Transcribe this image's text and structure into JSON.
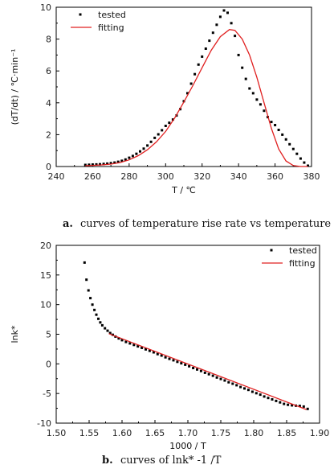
{
  "chart_data": [
    {
      "type": "scatter",
      "xlabel": "T / ℃",
      "ylabel": "(dT/dt) / ℃·min⁻¹",
      "xlim": [
        240,
        380
      ],
      "ylim": [
        0,
        10
      ],
      "xticks": [
        240,
        260,
        280,
        300,
        320,
        340,
        360,
        380
      ],
      "yticks": [
        0,
        2,
        4,
        6,
        8,
        10
      ],
      "legend_position": "top-left",
      "caption_letter": "a.",
      "caption_text": "curves of temperature rise rate vs temperature",
      "series": [
        {
          "name": "tested",
          "style": "points",
          "color": "#000000",
          "x": [
            256,
            258,
            260,
            262,
            264,
            266,
            268,
            270,
            272,
            274,
            276,
            278,
            280,
            282,
            284,
            286,
            288,
            290,
            292,
            294,
            296,
            298,
            300,
            302,
            304,
            306,
            308,
            310,
            312,
            314,
            316,
            318,
            320,
            322,
            324,
            326,
            328,
            330,
            332,
            334,
            336,
            338,
            340,
            342,
            344,
            346,
            348,
            350,
            352,
            354,
            356,
            358,
            360,
            362,
            364,
            366,
            368,
            370,
            372,
            374,
            376,
            378
          ],
          "y": [
            0.1,
            0.11,
            0.12,
            0.13,
            0.14,
            0.16,
            0.18,
            0.21,
            0.25,
            0.3,
            0.36,
            0.44,
            0.55,
            0.66,
            0.8,
            0.95,
            1.12,
            1.32,
            1.55,
            1.8,
            2.02,
            2.28,
            2.55,
            2.75,
            2.95,
            3.2,
            3.6,
            4.1,
            4.6,
            5.2,
            5.8,
            6.4,
            6.9,
            7.4,
            7.9,
            8.4,
            8.9,
            9.4,
            9.8,
            9.65,
            9.0,
            8.2,
            7.0,
            6.2,
            5.5,
            4.9,
            4.6,
            4.2,
            3.9,
            3.5,
            3.1,
            2.8,
            2.6,
            2.3,
            2.0,
            1.7,
            1.4,
            1.1,
            0.8,
            0.5,
            0.25,
            0.05
          ]
        },
        {
          "name": "fitting",
          "style": "line",
          "color": "#e02020",
          "x": [
            256,
            260,
            265,
            270,
            275,
            280,
            285,
            290,
            295,
            300,
            305,
            310,
            315,
            320,
            325,
            330,
            335,
            338,
            342,
            346,
            350,
            354,
            358,
            362,
            366,
            370,
            374,
            378
          ],
          "y": [
            0.05,
            0.07,
            0.1,
            0.15,
            0.25,
            0.42,
            0.68,
            1.05,
            1.55,
            2.2,
            3.05,
            4.05,
            5.1,
            6.2,
            7.3,
            8.15,
            8.6,
            8.55,
            8.0,
            7.0,
            5.6,
            4.0,
            2.4,
            1.1,
            0.35,
            0.06,
            0.0,
            0.0
          ]
        }
      ]
    },
    {
      "type": "scatter",
      "xlabel": "1000 / T",
      "ylabel": "lnk*",
      "xlim": [
        1.5,
        1.9
      ],
      "ylim": [
        -10,
        20
      ],
      "xticks": [
        1.5,
        1.55,
        1.6,
        1.65,
        1.7,
        1.75,
        1.8,
        1.85,
        1.9
      ],
      "xtick_labels": [
        "1.50",
        "1.55",
        "1.60",
        "1.65",
        "1.70",
        "1.75",
        "1.80",
        "1.85",
        "1.90"
      ],
      "yticks": [
        -10,
        -5,
        0,
        5,
        10,
        15,
        20
      ],
      "legend_position": "top-right",
      "caption_letter": "b.",
      "caption_text": "curves of lnk* -1 /T",
      "series": [
        {
          "name": "tested",
          "style": "points",
          "color": "#000000",
          "x": [
            1.543,
            1.546,
            1.549,
            1.552,
            1.555,
            1.558,
            1.561,
            1.564,
            1.567,
            1.57,
            1.574,
            1.578,
            1.582,
            1.586,
            1.59,
            1.595,
            1.6,
            1.606,
            1.612,
            1.618,
            1.624,
            1.63,
            1.636,
            1.642,
            1.648,
            1.654,
            1.66,
            1.666,
            1.672,
            1.678,
            1.684,
            1.69,
            1.696,
            1.702,
            1.708,
            1.714,
            1.72,
            1.726,
            1.732,
            1.738,
            1.744,
            1.75,
            1.756,
            1.762,
            1.768,
            1.774,
            1.78,
            1.786,
            1.792,
            1.798,
            1.804,
            1.81,
            1.816,
            1.822,
            1.828,
            1.834,
            1.84,
            1.846,
            1.852,
            1.858,
            1.864,
            1.87,
            1.876,
            1.882
          ],
          "y": [
            17.1,
            14.2,
            12.4,
            11.1,
            10.0,
            9.1,
            8.3,
            7.6,
            7.0,
            6.5,
            6.0,
            5.6,
            5.2,
            4.9,
            4.6,
            4.3,
            4.0,
            3.7,
            3.45,
            3.2,
            2.95,
            2.7,
            2.45,
            2.2,
            1.95,
            1.65,
            1.4,
            1.1,
            0.85,
            0.6,
            0.35,
            0.1,
            -0.15,
            -0.4,
            -0.7,
            -0.95,
            -1.2,
            -1.5,
            -1.75,
            -2.0,
            -2.3,
            -2.55,
            -2.8,
            -3.1,
            -3.35,
            -3.6,
            -3.9,
            -4.15,
            -4.4,
            -4.7,
            -4.95,
            -5.2,
            -5.5,
            -5.75,
            -6.0,
            -6.25,
            -6.5,
            -6.75,
            -6.9,
            -7.0,
            -7.05,
            -7.1,
            -7.2,
            -7.6
          ]
        },
        {
          "name": "fitting",
          "style": "line",
          "color": "#e02020",
          "x": [
            1.58,
            1.88
          ],
          "y": [
            5.1,
            -7.7
          ]
        }
      ]
    }
  ]
}
